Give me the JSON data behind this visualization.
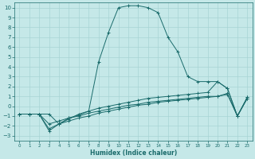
{
  "xlabel": "Humidex (Indice chaleur)",
  "bg_color": "#c5e8e8",
  "grid_color": "#a8d4d4",
  "line_color": "#1a6b6b",
  "xlim": [
    -0.5,
    23.5
  ],
  "ylim": [
    -3.5,
    10.5
  ],
  "xticks": [
    0,
    1,
    2,
    3,
    4,
    5,
    6,
    7,
    8,
    9,
    10,
    11,
    12,
    13,
    14,
    15,
    16,
    17,
    18,
    19,
    20,
    21,
    22,
    23
  ],
  "yticks": [
    -3,
    -2,
    -1,
    0,
    1,
    2,
    3,
    4,
    5,
    6,
    7,
    8,
    9,
    10
  ],
  "series": [
    {
      "x": [
        0,
        1,
        2,
        3,
        4,
        5,
        6,
        7,
        8,
        9,
        10,
        11,
        12,
        13,
        14,
        15,
        16,
        17,
        18,
        19,
        20,
        21,
        22,
        23
      ],
      "y": [
        -0.8,
        -0.8,
        -0.8,
        -0.8,
        -1.8,
        -1.2,
        -0.9,
        -0.5,
        4.5,
        7.5,
        10.0,
        10.2,
        10.2,
        10.0,
        9.5,
        7.0,
        5.5,
        3.0,
        2.5,
        2.5,
        2.5,
        1.8,
        -1.0,
        0.9
      ]
    },
    {
      "x": [
        0,
        1,
        2,
        3,
        4,
        5,
        6,
        7,
        8,
        9,
        10,
        11,
        12,
        13,
        14,
        15,
        16,
        17,
        18,
        19,
        20,
        21,
        22,
        23
      ],
      "y": [
        -0.8,
        -0.8,
        -0.8,
        -2.3,
        -1.8,
        -1.5,
        -1.2,
        -1.0,
        -0.7,
        -0.5,
        -0.3,
        -0.1,
        0.1,
        0.2,
        0.4,
        0.5,
        0.6,
        0.7,
        0.8,
        0.9,
        1.0,
        1.2,
        -1.0,
        0.8
      ]
    },
    {
      "x": [
        0,
        1,
        2,
        3,
        4,
        5,
        6,
        7,
        8,
        9,
        10,
        11,
        12,
        13,
        14,
        15,
        16,
        17,
        18,
        19,
        20,
        21,
        22,
        23
      ],
      "y": [
        -0.8,
        -0.8,
        -0.8,
        -1.8,
        -1.5,
        -1.2,
        -1.0,
        -0.7,
        -0.5,
        -0.3,
        -0.1,
        0.1,
        0.2,
        0.4,
        0.5,
        0.6,
        0.7,
        0.8,
        0.9,
        1.0,
        1.0,
        1.3,
        -1.0,
        0.8
      ]
    },
    {
      "x": [
        0,
        1,
        2,
        3,
        4,
        5,
        6,
        7,
        8,
        9,
        10,
        11,
        12,
        13,
        14,
        15,
        16,
        17,
        18,
        19,
        20,
        21,
        22,
        23
      ],
      "y": [
        -0.8,
        -0.8,
        -0.8,
        -2.5,
        -1.8,
        -1.3,
        -0.8,
        -0.5,
        -0.2,
        0.0,
        0.2,
        0.4,
        0.6,
        0.8,
        0.9,
        1.0,
        1.1,
        1.2,
        1.3,
        1.4,
        2.5,
        1.8,
        -1.0,
        0.9
      ]
    }
  ]
}
